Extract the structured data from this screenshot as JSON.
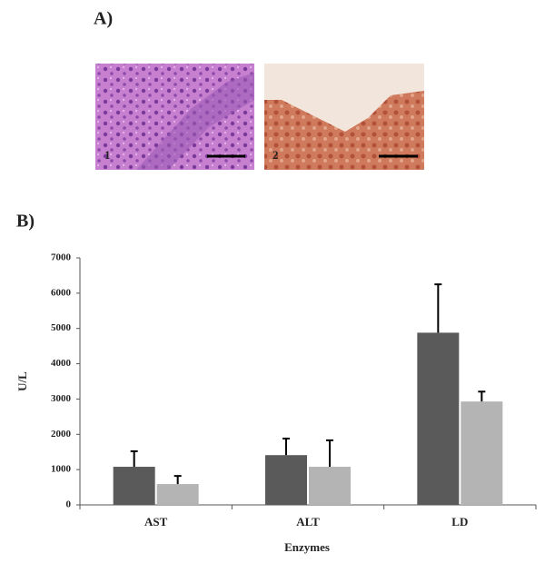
{
  "panel_a": {
    "label": "A)",
    "image_labels": [
      "1",
      "2"
    ]
  },
  "panel_b": {
    "label": "B)"
  },
  "chart_data": {
    "type": "bar",
    "categories": [
      "AST",
      "ALT",
      "LD"
    ],
    "x_label": "Enzymes",
    "y_label": "U/L",
    "series": [
      {
        "color": "#5a5a5a",
        "values": [
          1080,
          1410,
          4880
        ],
        "errors": [
          440,
          470,
          1370
        ]
      },
      {
        "color": "#b4b4b4",
        "values": [
          590,
          1080,
          2930
        ],
        "errors": [
          230,
          750,
          280
        ]
      }
    ],
    "ylim": [
      0,
      7000
    ],
    "yticks": [
      0,
      1000,
      2000,
      3000,
      4000,
      5000,
      6000,
      7000
    ],
    "grid": false
  }
}
